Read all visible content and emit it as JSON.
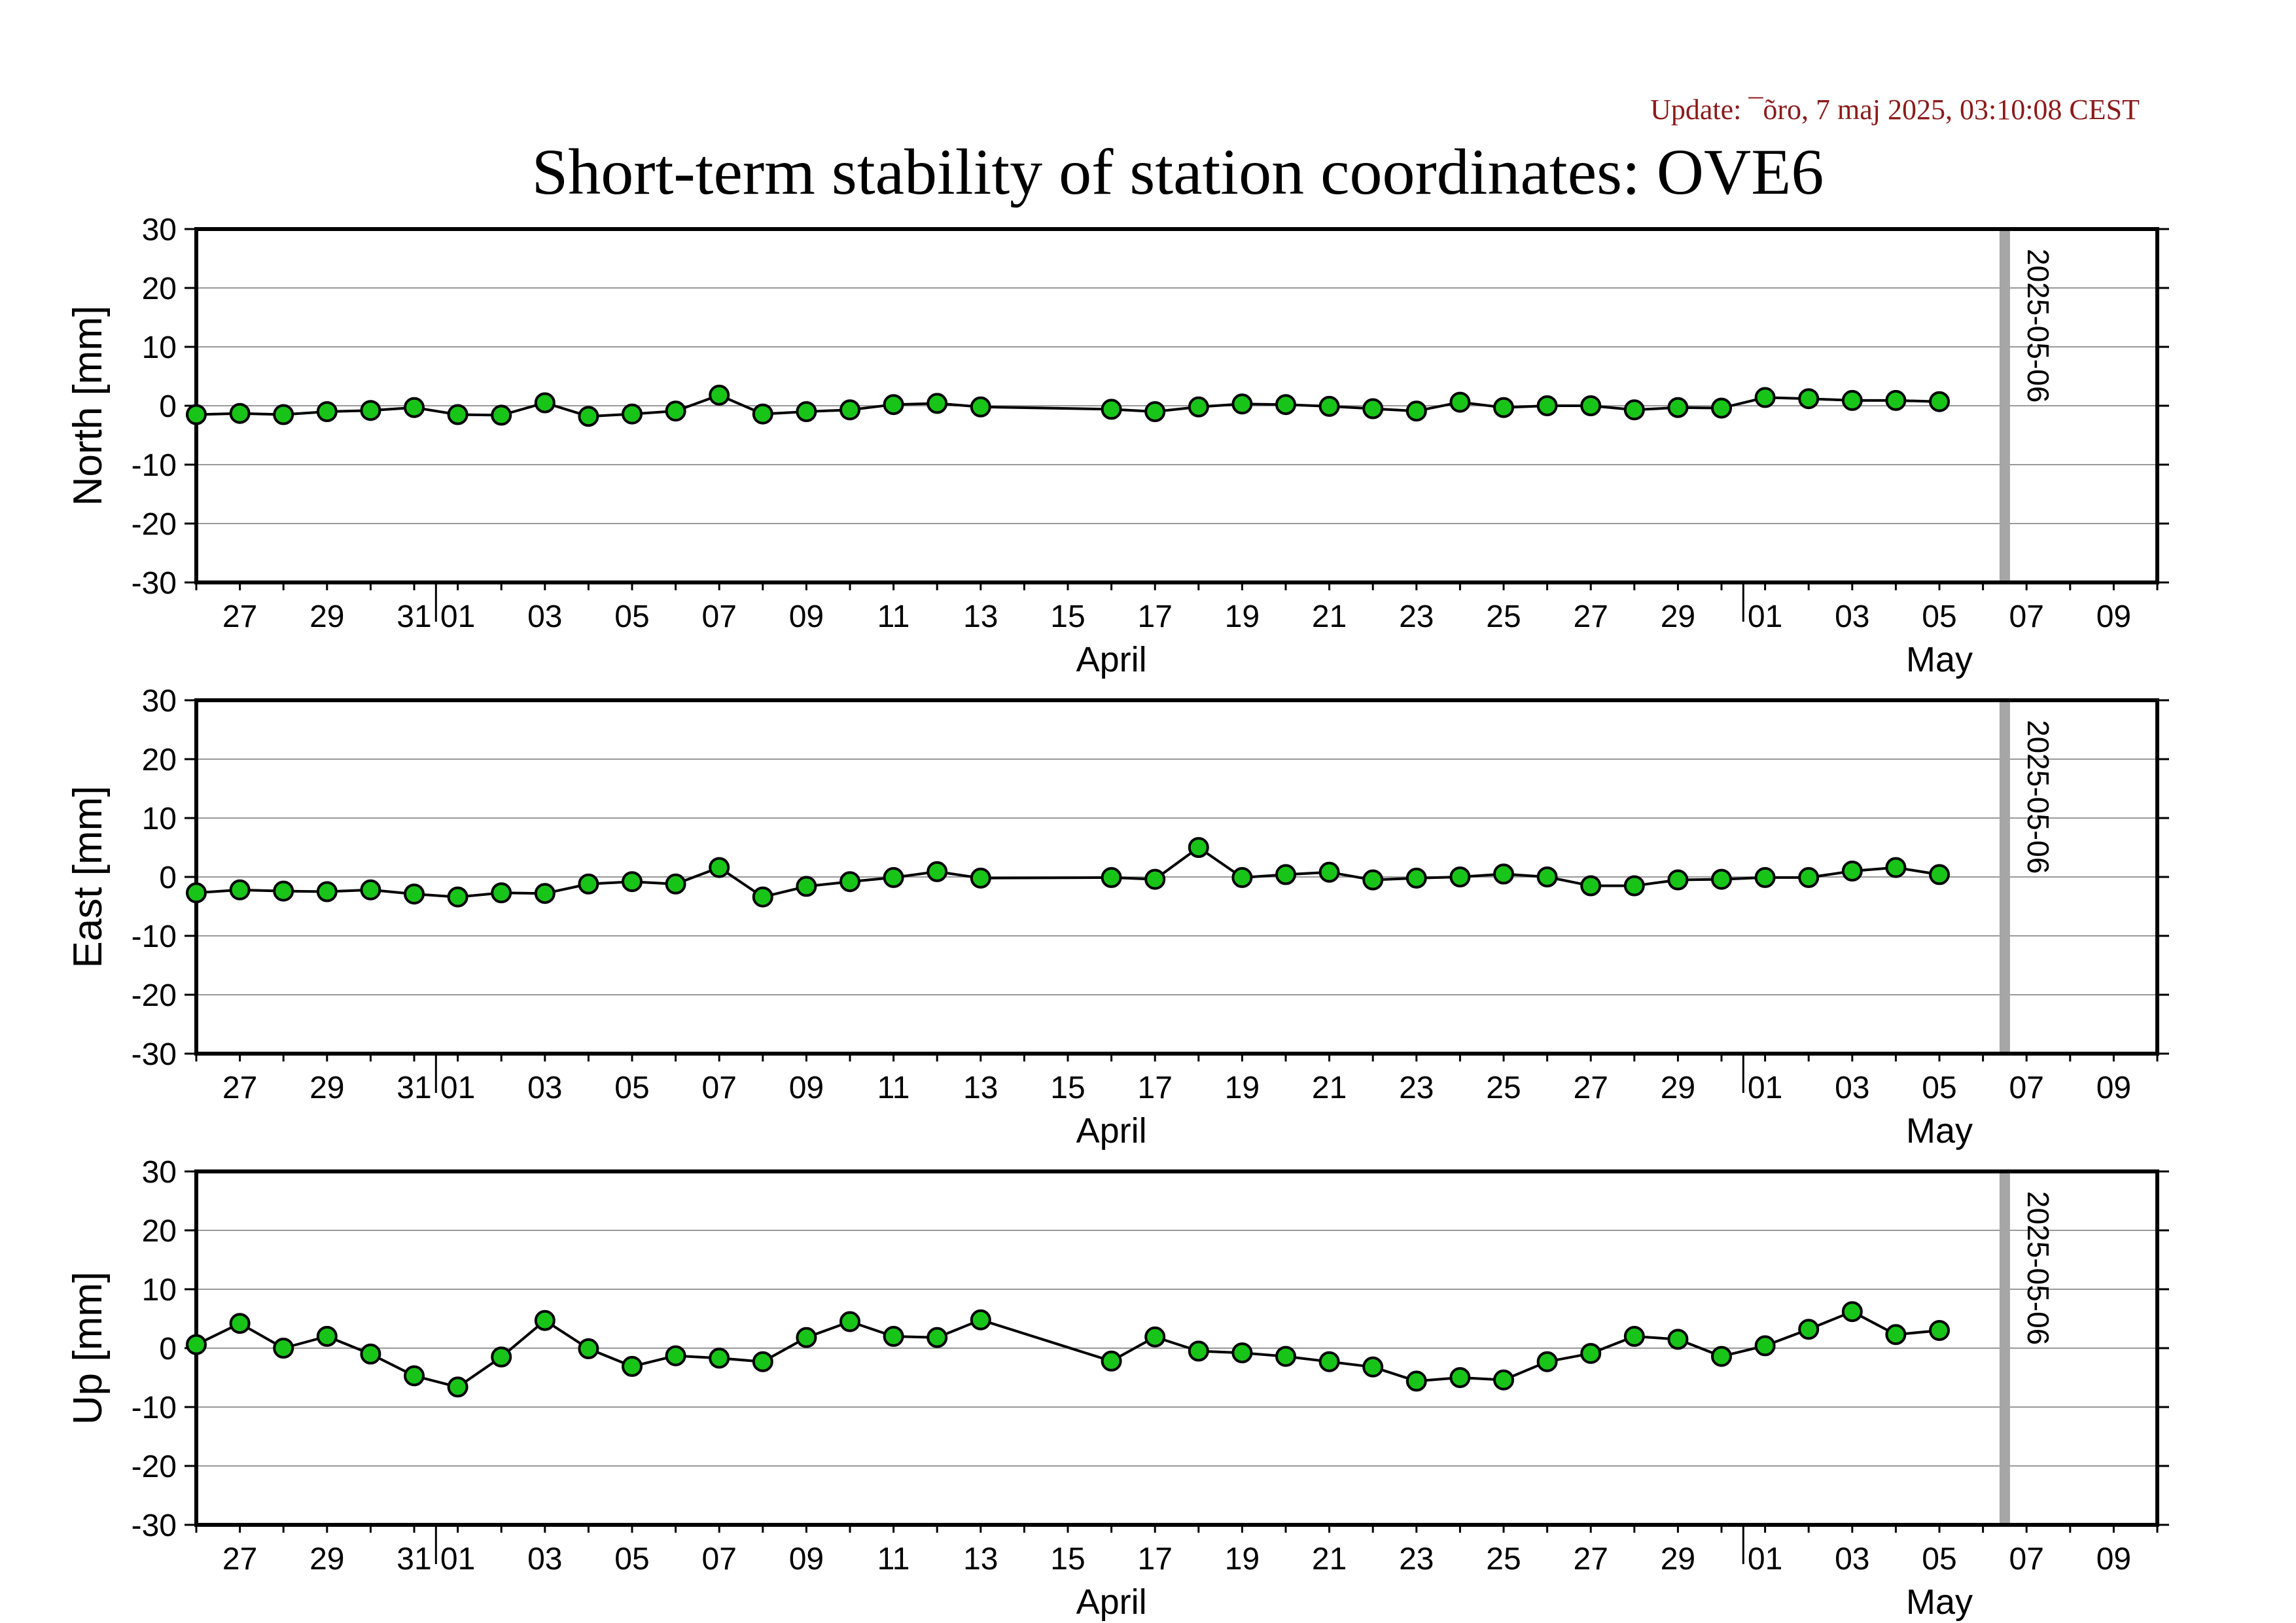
{
  "header": {
    "update": "Update: ¯õro, 7 maj 2025, 03:10:08 CEST",
    "title": "Short-term stability of station coordinates: OVE6"
  },
  "x_axis": {
    "domain": [
      "2025-03-26",
      "2025-05-10"
    ],
    "tick_labels": [
      "27",
      "29",
      "31",
      "01",
      "03",
      "05",
      "07",
      "09",
      "11",
      "13",
      "15",
      "17",
      "19",
      "21",
      "23",
      "25",
      "27",
      "29",
      "01",
      "03",
      "05",
      "07",
      "09"
    ],
    "tick_dates": [
      "2025-03-27",
      "2025-03-29",
      "2025-03-31",
      "2025-04-01",
      "2025-04-03",
      "2025-04-05",
      "2025-04-07",
      "2025-04-09",
      "2025-04-11",
      "2025-04-13",
      "2025-04-15",
      "2025-04-17",
      "2025-04-19",
      "2025-04-21",
      "2025-04-23",
      "2025-04-25",
      "2025-04-27",
      "2025-04-29",
      "2025-05-01",
      "2025-05-03",
      "2025-05-05",
      "2025-05-07",
      "2025-05-09"
    ],
    "month_labels": [
      {
        "label": "April",
        "date": "2025-04-16"
      },
      {
        "label": "May",
        "date": "2025-05-05"
      }
    ],
    "month_boundaries": [
      "2025-04-01",
      "2025-05-01"
    ]
  },
  "marker": {
    "label": "2025-05-06",
    "date": "2025-05-06",
    "color": "#a6a6a6"
  },
  "colors": {
    "point_fill": "#19c419",
    "line": "#000000",
    "grid": "#999999"
  },
  "chart_data": [
    {
      "type": "line",
      "name": "north",
      "ylabel": "North [mm]",
      "ylim": [
        -30,
        30
      ],
      "yticks": [
        "30",
        "20",
        "10",
        "0",
        "-10",
        "-20",
        "-30"
      ],
      "grid": true,
      "x": [
        "2025-03-26",
        "2025-03-27",
        "2025-03-28",
        "2025-03-29",
        "2025-03-30",
        "2025-03-31",
        "2025-04-01",
        "2025-04-02",
        "2025-04-03",
        "2025-04-04",
        "2025-04-05",
        "2025-04-06",
        "2025-04-07",
        "2025-04-08",
        "2025-04-09",
        "2025-04-10",
        "2025-04-11",
        "2025-04-12",
        "2025-04-13",
        "2025-04-16",
        "2025-04-17",
        "2025-04-18",
        "2025-04-19",
        "2025-04-20",
        "2025-04-21",
        "2025-04-22",
        "2025-04-23",
        "2025-04-24",
        "2025-04-25",
        "2025-04-26",
        "2025-04-27",
        "2025-04-28",
        "2025-04-29",
        "2025-04-30",
        "2025-05-01",
        "2025-05-02",
        "2025-05-03",
        "2025-05-04",
        "2025-05-05"
      ],
      "y": [
        -1.5,
        -1.3,
        -1.5,
        -1.0,
        -0.8,
        -0.3,
        -1.5,
        -1.6,
        0.5,
        -1.8,
        -1.4,
        -0.9,
        1.8,
        -1.4,
        -1.0,
        -0.7,
        0.2,
        0.4,
        -0.2,
        -0.6,
        -1.0,
        -0.2,
        0.3,
        0.2,
        -0.1,
        -0.5,
        -0.9,
        0.6,
        -0.3,
        0.0,
        0.0,
        -0.7,
        -0.3,
        -0.4,
        1.4,
        1.2,
        0.9,
        0.9,
        0.7
      ]
    },
    {
      "type": "line",
      "name": "east",
      "ylabel": "East [mm]",
      "ylim": [
        -30,
        30
      ],
      "yticks": [
        "30",
        "20",
        "10",
        "0",
        "-10",
        "-20",
        "-30"
      ],
      "grid": true,
      "x": [
        "2025-03-26",
        "2025-03-27",
        "2025-03-28",
        "2025-03-29",
        "2025-03-30",
        "2025-03-31",
        "2025-04-01",
        "2025-04-02",
        "2025-04-03",
        "2025-04-04",
        "2025-04-05",
        "2025-04-06",
        "2025-04-07",
        "2025-04-08",
        "2025-04-09",
        "2025-04-10",
        "2025-04-11",
        "2025-04-12",
        "2025-04-13",
        "2025-04-16",
        "2025-04-17",
        "2025-04-18",
        "2025-04-19",
        "2025-04-20",
        "2025-04-21",
        "2025-04-22",
        "2025-04-23",
        "2025-04-24",
        "2025-04-25",
        "2025-04-26",
        "2025-04-27",
        "2025-04-28",
        "2025-04-29",
        "2025-04-30",
        "2025-05-01",
        "2025-05-02",
        "2025-05-03",
        "2025-05-04",
        "2025-05-05"
      ],
      "y": [
        -2.7,
        -2.2,
        -2.4,
        -2.5,
        -2.2,
        -2.9,
        -3.4,
        -2.7,
        -2.8,
        -1.2,
        -0.8,
        -1.2,
        1.6,
        -3.4,
        -1.6,
        -0.8,
        -0.1,
        0.9,
        -0.2,
        -0.1,
        -0.4,
        5.0,
        -0.1,
        0.4,
        0.8,
        -0.5,
        -0.2,
        0.0,
        0.5,
        0.0,
        -1.5,
        -1.5,
        -0.5,
        -0.4,
        -0.1,
        -0.1,
        1.0,
        1.6,
        0.4
      ]
    },
    {
      "type": "line",
      "name": "up",
      "ylabel": "Up [mm]",
      "ylim": [
        -30,
        30
      ],
      "yticks": [
        "30",
        "20",
        "10",
        "0",
        "-10",
        "-20",
        "-30"
      ],
      "grid": true,
      "x": [
        "2025-03-26",
        "2025-03-27",
        "2025-03-28",
        "2025-03-29",
        "2025-03-30",
        "2025-03-31",
        "2025-04-01",
        "2025-04-02",
        "2025-04-03",
        "2025-04-04",
        "2025-04-05",
        "2025-04-06",
        "2025-04-07",
        "2025-04-08",
        "2025-04-09",
        "2025-04-10",
        "2025-04-11",
        "2025-04-12",
        "2025-04-13",
        "2025-04-16",
        "2025-04-17",
        "2025-04-18",
        "2025-04-19",
        "2025-04-20",
        "2025-04-21",
        "2025-04-22",
        "2025-04-23",
        "2025-04-24",
        "2025-04-25",
        "2025-04-26",
        "2025-04-27",
        "2025-04-28",
        "2025-04-29",
        "2025-04-30",
        "2025-05-01",
        "2025-05-02",
        "2025-05-03",
        "2025-05-04",
        "2025-05-05"
      ],
      "y": [
        0.6,
        4.2,
        0.0,
        2.0,
        -1.0,
        -4.7,
        -6.6,
        -1.5,
        4.7,
        -0.1,
        -3.1,
        -1.3,
        -1.7,
        -2.3,
        1.8,
        4.5,
        2.0,
        1.8,
        4.8,
        -2.2,
        1.9,
        -0.5,
        -0.8,
        -1.4,
        -2.3,
        -3.2,
        -5.6,
        -5.0,
        -5.4,
        -2.3,
        -0.9,
        2.0,
        1.5,
        -1.4,
        0.4,
        3.2,
        6.2,
        2.3,
        3.0
      ]
    }
  ]
}
